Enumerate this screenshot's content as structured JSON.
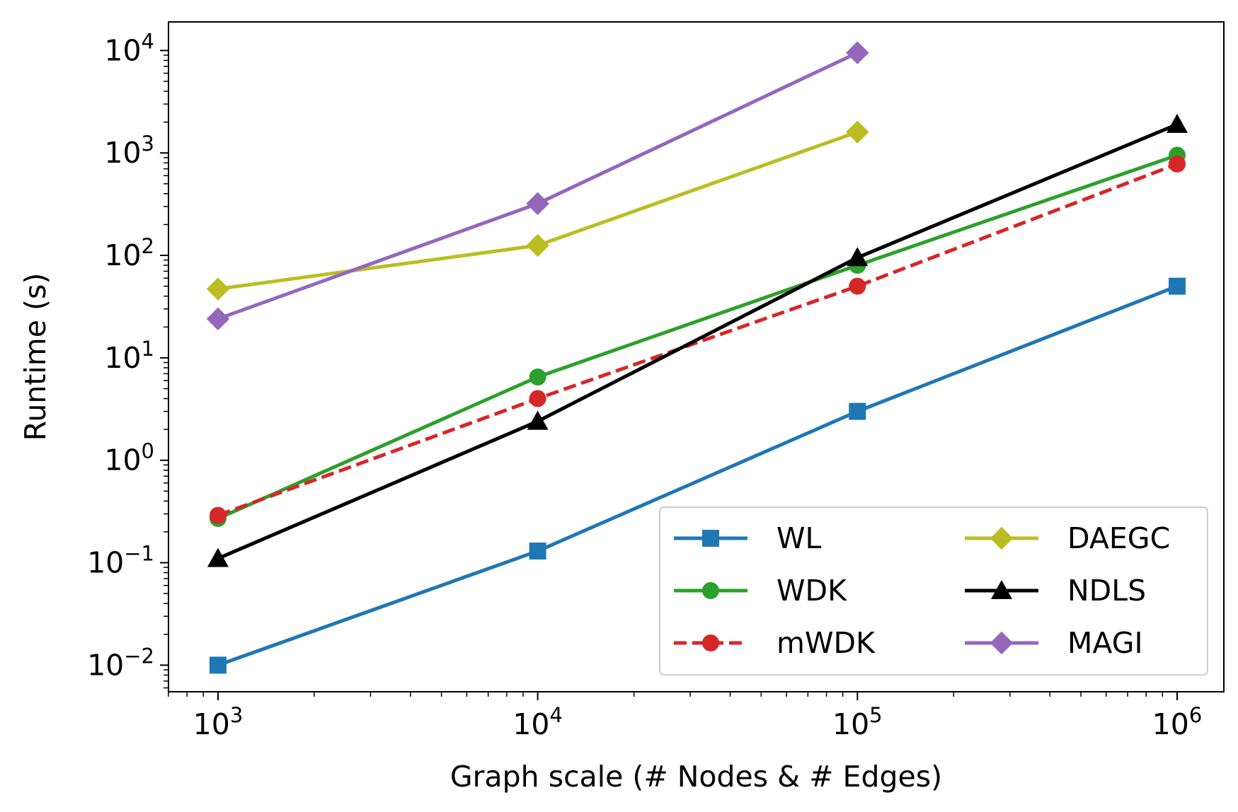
{
  "chart_data": {
    "type": "line",
    "title": "",
    "xlabel": "Graph scale (# Nodes & # Edges)",
    "ylabel": "Runtime (s)",
    "xscale": "log",
    "yscale": "log",
    "xlim": [
      700,
      1400000
    ],
    "ylim": [
      0.0055,
      19000
    ],
    "x_ticks": [
      {
        "value": 1000,
        "base": "10",
        "exp": "3"
      },
      {
        "value": 10000,
        "base": "10",
        "exp": "4"
      },
      {
        "value": 100000,
        "base": "10",
        "exp": "5"
      },
      {
        "value": 1000000,
        "base": "10",
        "exp": "6"
      }
    ],
    "y_ticks": [
      {
        "value": 0.01,
        "base": "10",
        "exp": "−2"
      },
      {
        "value": 0.1,
        "base": "10",
        "exp": "−1"
      },
      {
        "value": 1,
        "base": "10",
        "exp": "0"
      },
      {
        "value": 10,
        "base": "10",
        "exp": "1"
      },
      {
        "value": 100,
        "base": "10",
        "exp": "2"
      },
      {
        "value": 1000,
        "base": "10",
        "exp": "3"
      },
      {
        "value": 10000,
        "base": "10",
        "exp": "4"
      }
    ],
    "grid": false,
    "legend_position": "lower-right",
    "legend_columns": 2,
    "series": [
      {
        "name": "WL",
        "color": "#1f77b4",
        "marker": "square",
        "dashed": false,
        "x": [
          1000,
          10000,
          100000,
          1000000
        ],
        "y": [
          0.01,
          0.13,
          3.0,
          50
        ]
      },
      {
        "name": "WDK",
        "color": "#2ca02c",
        "marker": "circle",
        "dashed": false,
        "x": [
          1000,
          10000,
          100000,
          1000000
        ],
        "y": [
          0.27,
          6.5,
          80,
          950
        ]
      },
      {
        "name": "mWDK",
        "color": "#d62728",
        "marker": "circle",
        "dashed": true,
        "x": [
          1000,
          10000,
          100000,
          1000000
        ],
        "y": [
          0.29,
          4.0,
          50,
          780
        ]
      },
      {
        "name": "DAEGC",
        "color": "#bcbd22",
        "marker": "diamond",
        "dashed": false,
        "x": [
          1000,
          10000,
          100000
        ],
        "y": [
          47,
          125,
          1600
        ]
      },
      {
        "name": "NDLS",
        "color": "#000000",
        "marker": "triangle",
        "dashed": false,
        "x": [
          1000,
          10000,
          100000,
          1000000
        ],
        "y": [
          0.11,
          2.4,
          95,
          1900
        ]
      },
      {
        "name": "MAGI",
        "color": "#9467bd",
        "marker": "diamond",
        "dashed": false,
        "x": [
          1000,
          10000,
          100000
        ],
        "y": [
          24,
          320,
          9500
        ]
      }
    ]
  }
}
